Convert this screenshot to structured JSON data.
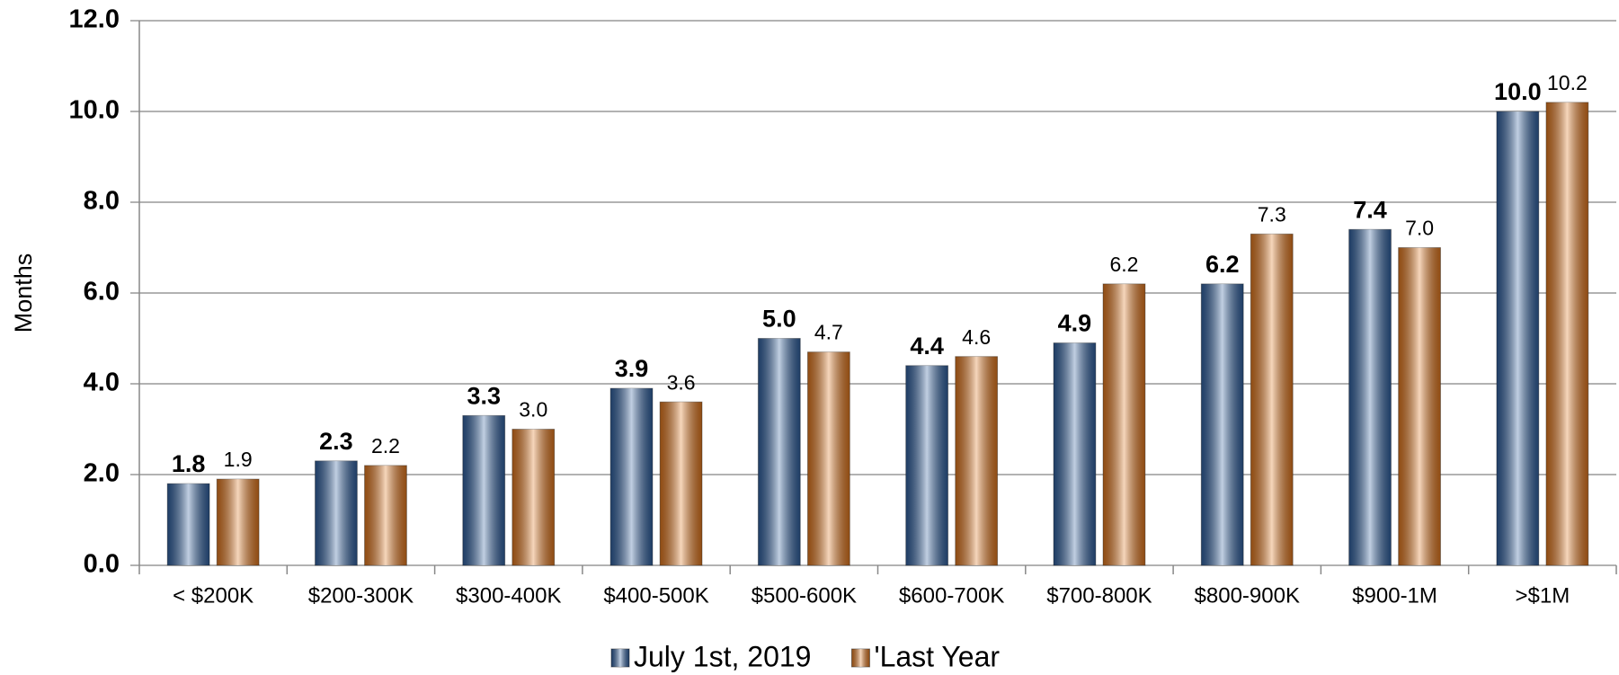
{
  "chart_data": {
    "type": "bar",
    "y_label": "Months",
    "categories": [
      "< $200K",
      "$200-300K",
      "$300-400K",
      "$400-500K",
      "$500-600K",
      "$600-700K",
      "$700-800K",
      "$800-900K",
      "$900-1M",
      ">$1M"
    ],
    "series": [
      {
        "name": "July 1st, 2019",
        "color": "#2f5f9e",
        "label_color": "#0070c0",
        "values": [
          1.8,
          2.3,
          3.3,
          3.9,
          5.0,
          4.4,
          4.9,
          6.2,
          7.4,
          10.0
        ],
        "value_labels": [
          "1.8",
          "2.3",
          "3.3",
          "3.9",
          "5.0",
          "4.4",
          "4.9",
          "6.2",
          "7.4",
          "10.0"
        ]
      },
      {
        "name": "'Last Year",
        "color": "#e0761d",
        "label_color": "#e46c0a",
        "values": [
          1.9,
          2.2,
          3.0,
          3.6,
          4.7,
          4.6,
          6.2,
          7.3,
          7.0,
          10.2
        ],
        "value_labels": [
          "1.9",
          "2.2",
          "3.0",
          "3.6",
          "4.7",
          "4.6",
          "6.2",
          "7.3",
          "7.0",
          "10.2"
        ]
      }
    ],
    "ylim": [
      0,
      12
    ],
    "yticks": [
      {
        "value": 0,
        "label": "0.0"
      },
      {
        "value": 2,
        "label": "2.0"
      },
      {
        "value": 4,
        "label": "4.0"
      },
      {
        "value": 6,
        "label": "6.0"
      },
      {
        "value": 8,
        "label": "8.0"
      },
      {
        "value": 10,
        "label": "10.0"
      },
      {
        "value": 12,
        "label": "12.0"
      }
    ],
    "grid": true
  }
}
